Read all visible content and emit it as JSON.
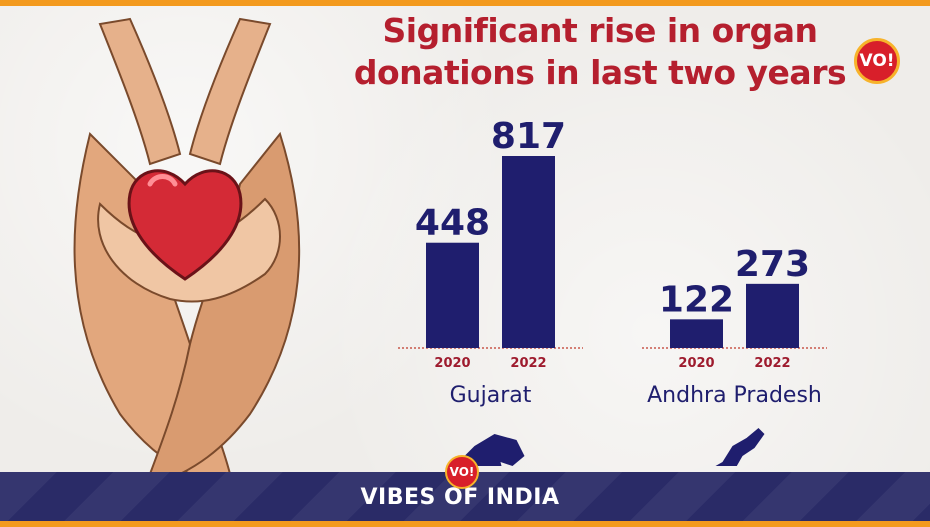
{
  "header": {
    "title_line1": "Significant rise in organ",
    "title_line2": "donations in last two years",
    "logo_text": "VO!"
  },
  "footer": {
    "brand": "VIBES OF INDIA",
    "logo_text": "VO!"
  },
  "colors": {
    "title": "#b51f2e",
    "bar": "#1f1e6e",
    "year_label": "#9e1b2e",
    "baseline": "#c0392b",
    "footer_bg": "#2a2b67",
    "frame": "#f39a1e"
  },
  "icons": [
    "hands-heart-illustration",
    "gujarat-map-icon",
    "andhra-pradesh-map-icon",
    "vo-logo-icon"
  ],
  "chart_data": [
    {
      "type": "bar",
      "categories": [
        "2020",
        "2022"
      ],
      "values": [
        448,
        817
      ],
      "xlabel": "Gujarat",
      "ylim": [
        0,
        817
      ]
    },
    {
      "type": "bar",
      "categories": [
        "2020",
        "2022"
      ],
      "values": [
        122,
        273
      ],
      "xlabel": "Andhra Pradesh",
      "ylim": [
        0,
        817
      ]
    }
  ]
}
